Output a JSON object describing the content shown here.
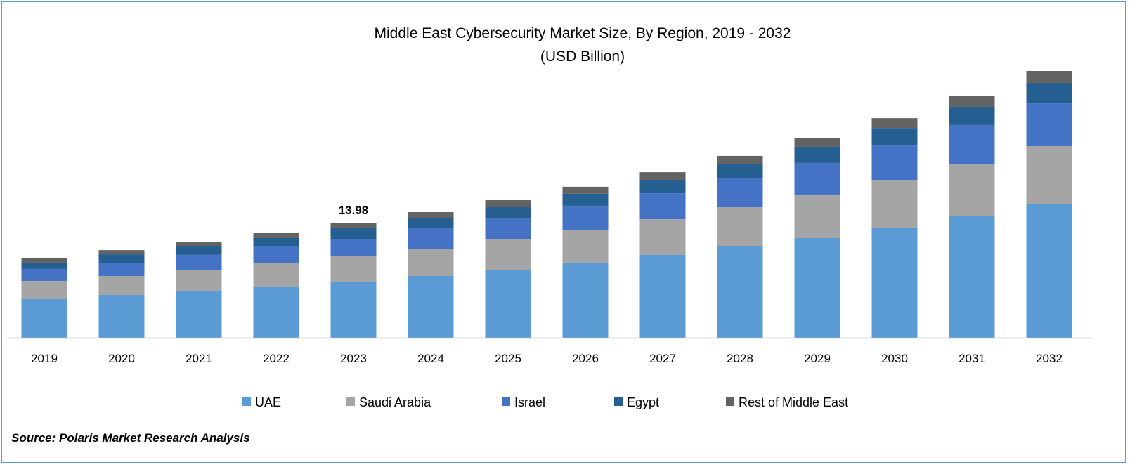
{
  "chart_data": {
    "type": "bar",
    "stacked": true,
    "title": "Middle East Cybersecurity Market Size, By Region, 2019 - 2032",
    "subtitle": "(USD Billion)",
    "xlabel": "",
    "ylabel": "",
    "categories": [
      "2019",
      "2020",
      "2021",
      "2022",
      "2023",
      "2024",
      "2025",
      "2026",
      "2027",
      "2028",
      "2029",
      "2030",
      "2031",
      "2032"
    ],
    "series": [
      {
        "name": "UAE",
        "color": "#5b9bd5",
        "values": [
          4.72,
          5.23,
          5.75,
          6.26,
          6.86,
          7.55,
          8.32,
          9.18,
          10.12,
          11.15,
          12.18,
          13.46,
          14.84,
          16.38
        ]
      },
      {
        "name": "Saudi Arabia",
        "color": "#a5a5a5",
        "values": [
          2.23,
          2.32,
          2.49,
          2.83,
          3.09,
          3.34,
          3.69,
          3.95,
          4.37,
          4.8,
          5.32,
          5.83,
          6.43,
          7.03
        ]
      },
      {
        "name": "Israel",
        "color": "#4472c4",
        "values": [
          1.46,
          1.54,
          1.89,
          2.06,
          2.14,
          2.49,
          2.57,
          3.0,
          3.17,
          3.52,
          3.86,
          4.2,
          4.72,
          5.23
        ]
      },
      {
        "name": "Egypt",
        "color": "#255e91",
        "values": [
          0.77,
          1.11,
          1.03,
          1.03,
          1.29,
          1.2,
          1.37,
          1.46,
          1.63,
          1.72,
          1.97,
          2.14,
          2.23,
          2.49
        ]
      },
      {
        "name": "Rest of Middle East",
        "color": "#636363",
        "values": [
          0.6,
          0.51,
          0.51,
          0.6,
          0.6,
          0.77,
          0.86,
          0.86,
          0.94,
          1.03,
          1.11,
          1.2,
          1.37,
          1.46
        ]
      }
    ],
    "annotations": [
      {
        "category": "2023",
        "text": "13.98"
      }
    ],
    "ylim": [
      0,
      34
    ],
    "grid": false,
    "y_axis_visible": false,
    "legend": "bottom"
  },
  "source": "Source: Polaris Market Research Analysis"
}
